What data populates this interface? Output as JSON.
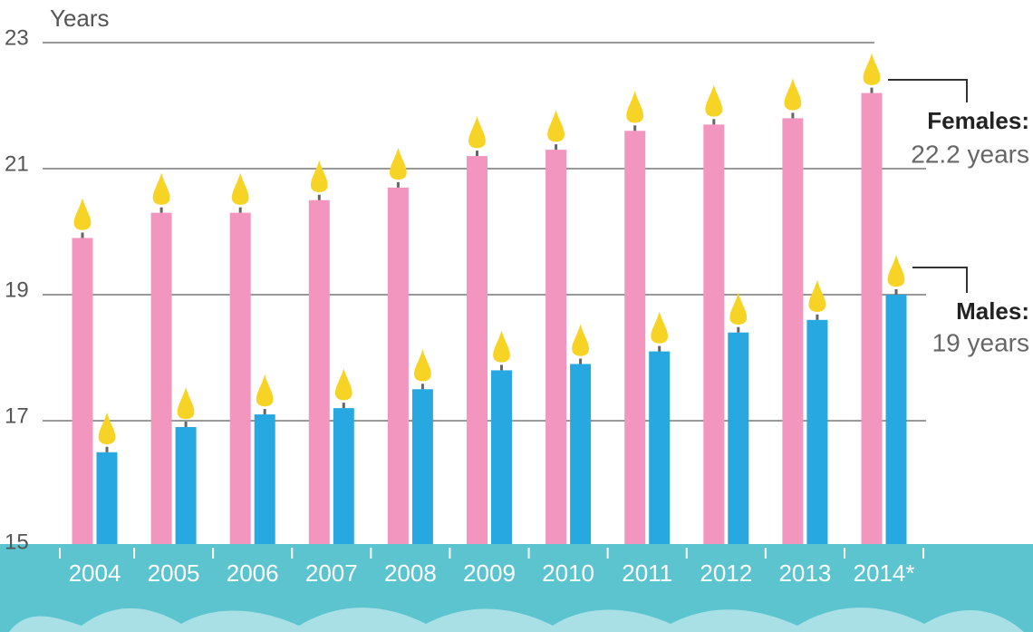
{
  "chart_data": {
    "type": "bar",
    "y_label": "Years",
    "categories": [
      "2004",
      "2005",
      "2006",
      "2007",
      "2008",
      "2009",
      "2010",
      "2011",
      "2012",
      "2013",
      "2014*"
    ],
    "series": [
      {
        "name": "Females:",
        "color": "#f396bf",
        "values": [
          19.9,
          20.3,
          20.3,
          20.5,
          20.7,
          21.2,
          21.3,
          21.6,
          21.7,
          21.8,
          22.2
        ]
      },
      {
        "name": "Males:",
        "color": "#28a8e0",
        "values": [
          16.5,
          16.9,
          17.1,
          17.2,
          17.5,
          17.8,
          17.9,
          18.1,
          18.4,
          18.6,
          19
        ]
      }
    ],
    "annotations": [
      "22.2 years",
      "19 years"
    ],
    "ylim": [
      15,
      23
    ],
    "yticks": [
      15,
      17,
      19,
      21,
      23
    ],
    "grid": true
  }
}
